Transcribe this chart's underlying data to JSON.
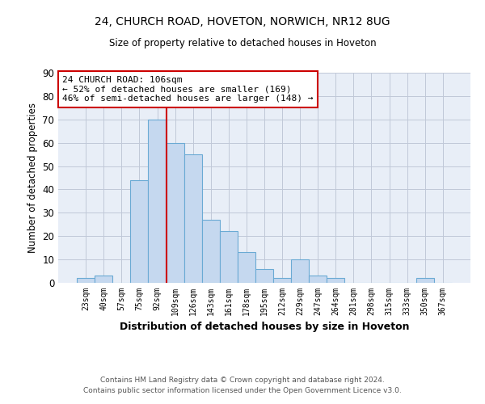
{
  "title_line1": "24, CHURCH ROAD, HOVETON, NORWICH, NR12 8UG",
  "title_line2": "Size of property relative to detached houses in Hoveton",
  "xlabel": "Distribution of detached houses by size in Hoveton",
  "ylabel": "Number of detached properties",
  "bar_labels": [
    "23sqm",
    "40sqm",
    "57sqm",
    "75sqm",
    "92sqm",
    "109sqm",
    "126sqm",
    "143sqm",
    "161sqm",
    "178sqm",
    "195sqm",
    "212sqm",
    "229sqm",
    "247sqm",
    "264sqm",
    "281sqm",
    "298sqm",
    "315sqm",
    "333sqm",
    "350sqm",
    "367sqm"
  ],
  "bar_values": [
    2,
    3,
    0,
    44,
    70,
    60,
    55,
    27,
    22,
    13,
    6,
    2,
    10,
    3,
    2,
    0,
    0,
    0,
    0,
    2,
    0
  ],
  "bar_color": "#c5d8ef",
  "bar_edge_color": "#6aaad4",
  "property_line_color": "#cc0000",
  "property_line_x": 4.5,
  "annotation_title": "24 CHURCH ROAD: 106sqm",
  "annotation_line2": "← 52% of detached houses are smaller (169)",
  "annotation_line3": "46% of semi-detached houses are larger (148) →",
  "annotation_box_color": "#ffffff",
  "annotation_box_edge": "#cc0000",
  "ylim": [
    0,
    90
  ],
  "yticks": [
    0,
    10,
    20,
    30,
    40,
    50,
    60,
    70,
    80,
    90
  ],
  "footnote_line1": "Contains HM Land Registry data © Crown copyright and database right 2024.",
  "footnote_line2": "Contains public sector information licensed under the Open Government Licence v3.0.",
  "background_color": "#ffffff",
  "plot_bg_color": "#e8eef7",
  "grid_color": "#c0c8d8"
}
